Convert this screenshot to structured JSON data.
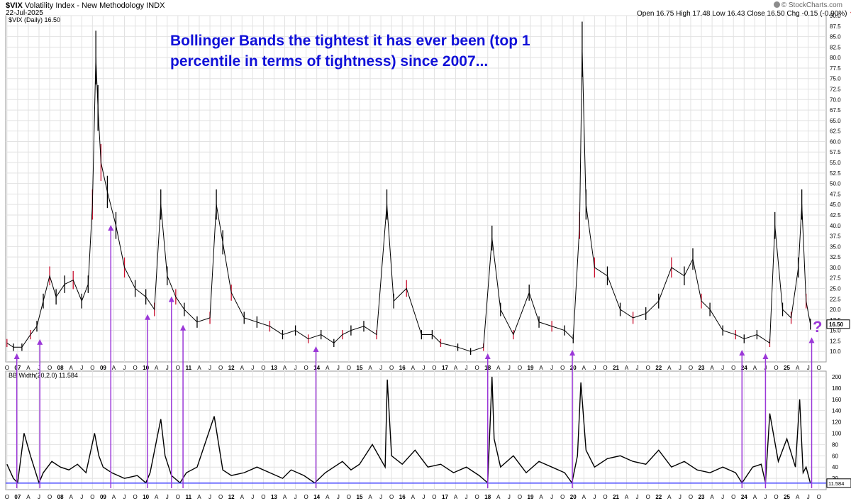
{
  "header": {
    "symbol": "$VIX",
    "name": "Volatility Index - New Methodology",
    "exchange": "INDX",
    "date": "22-Jul-2025",
    "brand": "© StockCharts.com",
    "ohlc": {
      "open_label": "Open",
      "open": "16.75",
      "high_label": "High",
      "high": "17.48",
      "low_label": "Low",
      "low": "16.43",
      "close_label": "Close",
      "close": "16.50",
      "chg_label": "Chg",
      "chg": "-0.15 (-0.90%)"
    }
  },
  "annotation": {
    "text": "Bollinger Bands the tightest it has ever been (top 1 percentile in terms of tightness) since 2007...",
    "question": "?"
  },
  "colors": {
    "annotation": "#1010d8",
    "arrows": "#9b38d8",
    "price_down": "#c8102e",
    "price_up": "#000000",
    "bb_line": "#000000",
    "bb_threshold": "#4040ff"
  },
  "chart_data": [
    {
      "type": "line",
      "panel": "price",
      "legend": "$VIX (Daily) 16.50",
      "last_value_label": "16.50",
      "ylim": [
        7.5,
        90.0
      ],
      "y_scale": "linear",
      "grid": true,
      "y_ticks": [
        10.0,
        12.5,
        15.0,
        17.5,
        20.0,
        22.5,
        25.0,
        27.5,
        30.0,
        32.5,
        35.0,
        37.5,
        40.0,
        42.5,
        45.0,
        47.5,
        50.0,
        52.5,
        55.0,
        57.5,
        60.0,
        62.5,
        65.0,
        67.5,
        70.0,
        72.5,
        75.0,
        77.5,
        80.0,
        82.5,
        85.0,
        87.5,
        90.0
      ],
      "x_ticks": [
        "O",
        "07",
        "A",
        "J",
        "O",
        "08",
        "A",
        "J",
        "O",
        "09",
        "A",
        "J",
        "O",
        "10",
        "A",
        "J",
        "O",
        "11",
        "A",
        "J",
        "O",
        "12",
        "A",
        "J",
        "O",
        "13",
        "A",
        "J",
        "O",
        "14",
        "A",
        "J",
        "O",
        "15",
        "A",
        "J",
        "O",
        "16",
        "A",
        "J",
        "O",
        "17",
        "A",
        "J",
        "O",
        "18",
        "A",
        "J",
        "O",
        "19",
        "A",
        "J",
        "O",
        "20",
        "A",
        "J",
        "O",
        "21",
        "A",
        "J",
        "O",
        "22",
        "A",
        "J",
        "O",
        "23",
        "A",
        "J",
        "O",
        "24",
        "A",
        "J",
        "O",
        "25",
        "A",
        "J",
        "O"
      ],
      "x": [
        2006.75,
        2006.9,
        2007.1,
        2007.3,
        2007.45,
        2007.6,
        2007.75,
        2007.9,
        2008.1,
        2008.3,
        2008.5,
        2008.65,
        2008.75,
        2008.83,
        2008.88,
        2008.95,
        2009.1,
        2009.3,
        2009.5,
        2009.75,
        2010.0,
        2010.2,
        2010.35,
        2010.5,
        2010.7,
        2010.9,
        2011.2,
        2011.5,
        2011.65,
        2011.8,
        2012.0,
        2012.3,
        2012.6,
        2012.9,
        2013.2,
        2013.5,
        2013.8,
        2014.1,
        2014.4,
        2014.6,
        2014.8,
        2015.1,
        2015.4,
        2015.64,
        2015.8,
        2016.1,
        2016.45,
        2016.7,
        2016.9,
        2017.3,
        2017.6,
        2017.9,
        2018.1,
        2018.3,
        2018.6,
        2018.97,
        2019.2,
        2019.5,
        2019.8,
        2020.0,
        2020.15,
        2020.21,
        2020.3,
        2020.5,
        2020.8,
        2021.1,
        2021.4,
        2021.7,
        2022.0,
        2022.3,
        2022.6,
        2022.8,
        2023.0,
        2023.2,
        2023.5,
        2023.8,
        2024.0,
        2024.3,
        2024.6,
        2024.72,
        2024.9,
        2025.1,
        2025.27,
        2025.35,
        2025.45,
        2025.55
      ],
      "y": [
        12,
        11,
        11,
        14,
        16,
        22,
        28,
        23,
        26,
        27,
        22,
        26,
        45,
        80,
        68,
        55,
        48,
        40,
        30,
        25,
        23,
        20,
        45,
        28,
        23,
        20,
        17,
        18,
        45,
        36,
        24,
        18,
        17,
        16,
        14,
        15,
        13,
        14,
        12,
        14,
        15,
        16,
        14,
        45,
        22,
        25,
        14,
        14,
        12,
        11,
        10,
        11,
        37,
        20,
        14,
        24,
        17,
        16,
        15,
        13,
        40,
        82,
        45,
        30,
        28,
        20,
        18,
        19,
        22,
        30,
        28,
        32,
        22,
        20,
        15,
        14,
        13,
        14,
        12,
        40,
        20,
        18,
        30,
        45,
        22,
        16.5
      ],
      "arrows_at": [
        2006.98,
        2007.52,
        2009.18,
        2010.04,
        2010.6,
        2010.87,
        2013.98,
        2018.0,
        2019.98,
        2023.95,
        2024.5,
        2025.58
      ]
    },
    {
      "type": "line",
      "panel": "indicator",
      "legend": "BB Width(20,2.0) 11.584",
      "last_value_label": "11.584",
      "ylim": [
        0,
        210
      ],
      "y_ticks": [
        20,
        40,
        60,
        80,
        100,
        120,
        140,
        160,
        180,
        200
      ],
      "threshold": 11.584,
      "x": [
        2006.75,
        2006.9,
        2007.0,
        2007.15,
        2007.3,
        2007.5,
        2007.6,
        2007.8,
        2008.0,
        2008.2,
        2008.4,
        2008.6,
        2008.8,
        2008.9,
        2009.0,
        2009.2,
        2009.5,
        2009.8,
        2010.0,
        2010.1,
        2010.35,
        2010.45,
        2010.6,
        2010.8,
        2010.95,
        2011.2,
        2011.6,
        2011.8,
        2012.0,
        2012.3,
        2012.6,
        2012.9,
        2013.2,
        2013.4,
        2013.7,
        2013.95,
        2014.2,
        2014.4,
        2014.6,
        2014.8,
        2015.0,
        2015.3,
        2015.6,
        2015.65,
        2015.75,
        2016.0,
        2016.3,
        2016.6,
        2016.9,
        2017.2,
        2017.5,
        2017.8,
        2018.0,
        2018.1,
        2018.15,
        2018.3,
        2018.6,
        2018.9,
        2019.2,
        2019.5,
        2019.8,
        2019.97,
        2020.1,
        2020.18,
        2020.3,
        2020.5,
        2020.8,
        2021.1,
        2021.4,
        2021.7,
        2022.0,
        2022.3,
        2022.6,
        2022.9,
        2023.2,
        2023.5,
        2023.8,
        2023.95,
        2024.2,
        2024.4,
        2024.5,
        2024.6,
        2024.8,
        2025.0,
        2025.2,
        2025.3,
        2025.38,
        2025.45,
        2025.55
      ],
      "y": [
        45,
        20,
        12,
        100,
        60,
        12,
        30,
        50,
        40,
        35,
        45,
        30,
        100,
        60,
        40,
        30,
        20,
        25,
        12,
        30,
        125,
        60,
        25,
        12,
        30,
        40,
        130,
        35,
        25,
        30,
        40,
        30,
        20,
        35,
        25,
        12,
        30,
        40,
        50,
        35,
        45,
        80,
        40,
        195,
        60,
        45,
        70,
        40,
        45,
        30,
        40,
        25,
        12,
        200,
        90,
        40,
        60,
        30,
        50,
        40,
        30,
        12,
        60,
        190,
        70,
        40,
        55,
        60,
        50,
        45,
        70,
        40,
        50,
        35,
        30,
        40,
        30,
        12,
        40,
        45,
        12,
        135,
        50,
        90,
        40,
        160,
        30,
        40,
        11.6
      ]
    }
  ]
}
